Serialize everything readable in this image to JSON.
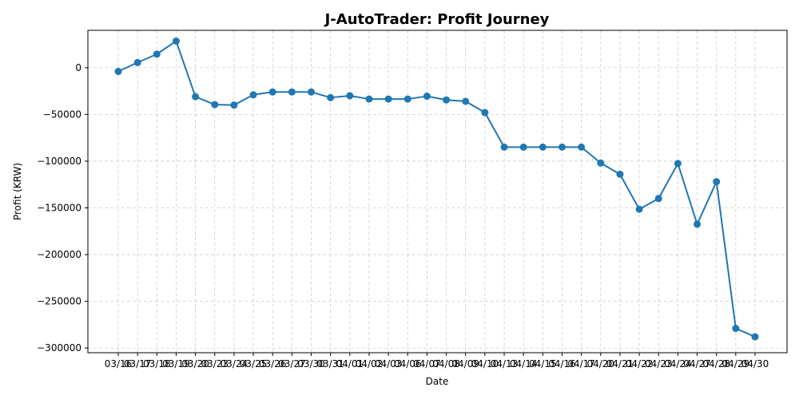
{
  "chart_data": {
    "type": "line",
    "title": "J-AutoTrader: Profit Journey",
    "xlabel": "Date",
    "ylabel": "Profit (KRW)",
    "ylim": [
      -305000,
      40000
    ],
    "yticks": [
      0,
      -50000,
      -100000,
      -150000,
      -200000,
      -250000,
      -300000
    ],
    "grid": true,
    "color": "#1f77b4",
    "x": [
      "03/16",
      "03/17",
      "03/18",
      "03/19",
      "03/20",
      "03/23",
      "03/24",
      "03/25",
      "03/26",
      "03/27",
      "03/30",
      "03/31",
      "04/01",
      "04/02",
      "04/03",
      "04/06",
      "04/07",
      "04/08",
      "04/09",
      "04/10",
      "04/13",
      "04/14",
      "04/15",
      "04/16",
      "04/17",
      "04/20",
      "04/21",
      "04/22",
      "04/23",
      "04/24",
      "04/27",
      "04/28",
      "04/29",
      "04/30"
    ],
    "series": [
      {
        "values": [
          -4000,
          5500,
          14500,
          28500,
          -31000,
          -39500,
          -40000,
          -29000,
          -26000,
          -26000,
          -26000,
          -32000,
          -30000,
          -33500,
          -33500,
          -33500,
          -30500,
          -34500,
          -36000,
          -48000,
          -85000,
          -85000,
          -85000,
          -85000,
          -85000,
          -102000,
          -114000,
          -151500,
          -140000,
          -102500,
          -167500,
          -122000,
          -279000,
          -288000
        ]
      }
    ]
  }
}
